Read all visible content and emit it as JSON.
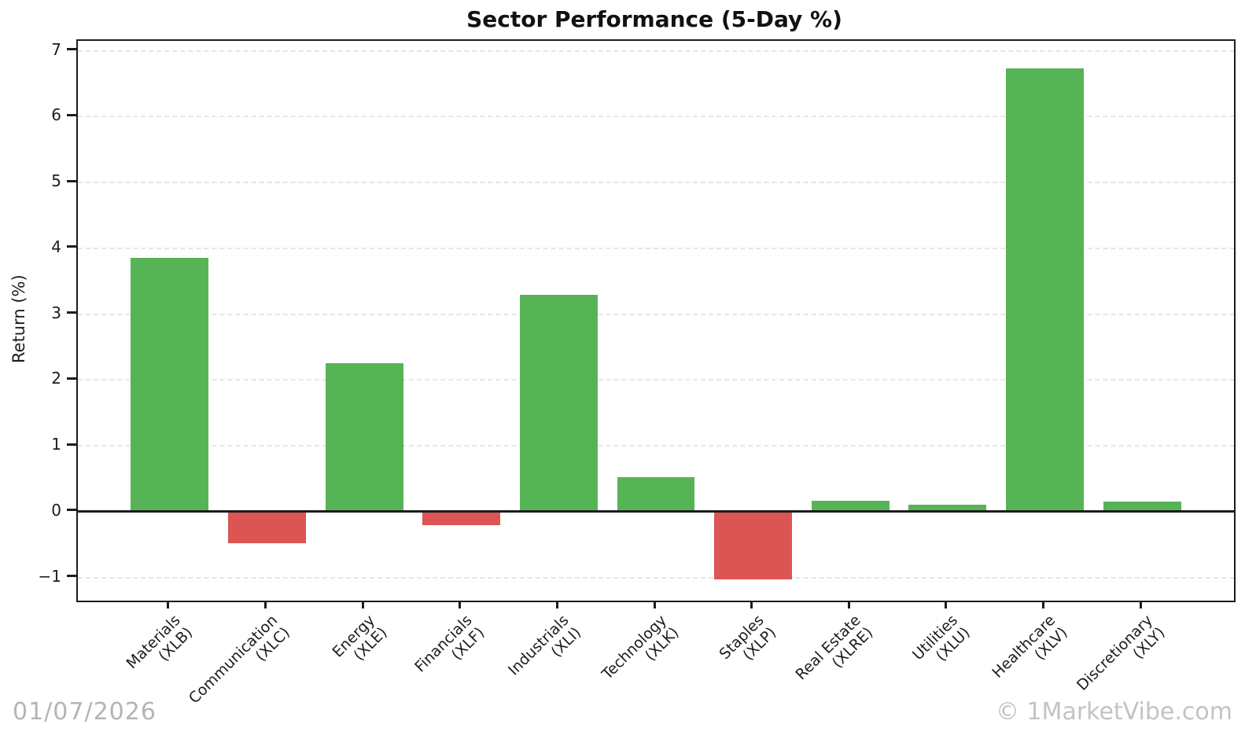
{
  "page": {
    "title": "Sector Performance (5-Day %)"
  },
  "chart_data": {
    "type": "bar",
    "title": "Sector Performance (5-Day %)",
    "xlabel": "",
    "ylabel": "Return (%)",
    "categories": [
      {
        "name": "Materials",
        "ticker": "(XLB)"
      },
      {
        "name": "Communication",
        "ticker": "(XLC)"
      },
      {
        "name": "Energy",
        "ticker": "(XLE)"
      },
      {
        "name": "Financials",
        "ticker": "(XLF)"
      },
      {
        "name": "Industrials",
        "ticker": "(XLI)"
      },
      {
        "name": "Technology",
        "ticker": "(XLK)"
      },
      {
        "name": "Staples",
        "ticker": "(XLP)"
      },
      {
        "name": "Real Estate",
        "ticker": "(XLRE)"
      },
      {
        "name": "Utilities",
        "ticker": "(XLU)"
      },
      {
        "name": "Healthcare",
        "ticker": "(XLV)"
      },
      {
        "name": "Discretionary",
        "ticker": "(XLY)"
      }
    ],
    "values": [
      3.85,
      -0.48,
      2.26,
      -0.21,
      3.29,
      0.53,
      -1.03,
      0.17,
      0.11,
      6.73,
      0.16
    ],
    "yticks": [
      -1,
      0,
      1,
      2,
      3,
      4,
      5,
      6,
      7
    ],
    "ylim": [
      -1.35,
      7.15
    ],
    "grid": {
      "axis": "y",
      "style": "dashed"
    },
    "legend": {
      "visible": false
    },
    "colors": {
      "positive": "#56b456",
      "negative": "#dc5454"
    }
  },
  "footer": {
    "date": "01/07/2026",
    "watermark": "© 1MarketVibe.com"
  }
}
